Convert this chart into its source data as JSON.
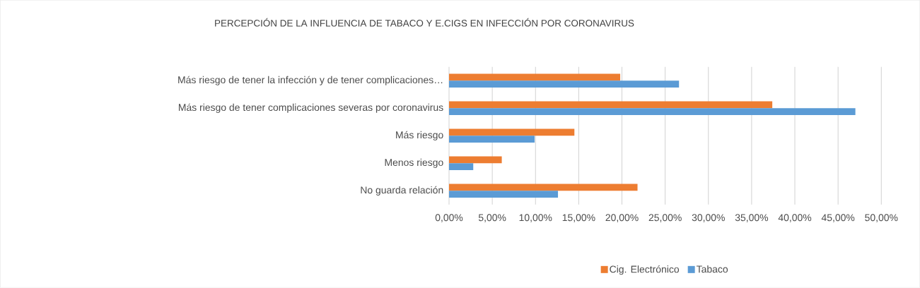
{
  "chart_data": {
    "type": "bar",
    "orientation": "horizontal",
    "title": "PERCEPCIÓN DE LA INFLUENCIA DE TABACO Y E.CIGS EN INFECCIÓN POR CORONAVIRUS",
    "categories": [
      "Más riesgo de tener la infección y de tener complicaciones…",
      "Más riesgo de tener complicaciones severas por coronavirus",
      "Más riesgo",
      "Menos riesgo",
      "No guarda relación"
    ],
    "series": [
      {
        "name": "Cig. Electrónico",
        "color": "#ed7d31",
        "values": [
          19.8,
          37.4,
          14.5,
          6.1,
          21.8
        ]
      },
      {
        "name": "Tabaco",
        "color": "#5b9bd5",
        "values": [
          26.6,
          47.0,
          9.9,
          2.8,
          12.6
        ]
      }
    ],
    "xlim": [
      0,
      50
    ],
    "xticks": [
      {
        "value": 0,
        "label": "0,00%"
      },
      {
        "value": 5,
        "label": "5,00%"
      },
      {
        "value": 10,
        "label": "10,00%"
      },
      {
        "value": 15,
        "label": "15,00%"
      },
      {
        "value": 20,
        "label": "20,00%"
      },
      {
        "value": 25,
        "label": "25,00%"
      },
      {
        "value": 30,
        "label": "30,00%"
      },
      {
        "value": 35,
        "label": "35,00%"
      },
      {
        "value": 40,
        "label": "40,00%"
      },
      {
        "value": 45,
        "label": "45,00%"
      },
      {
        "value": 50,
        "label": "50,00%"
      }
    ],
    "grid": "x",
    "legend": "bottom"
  }
}
